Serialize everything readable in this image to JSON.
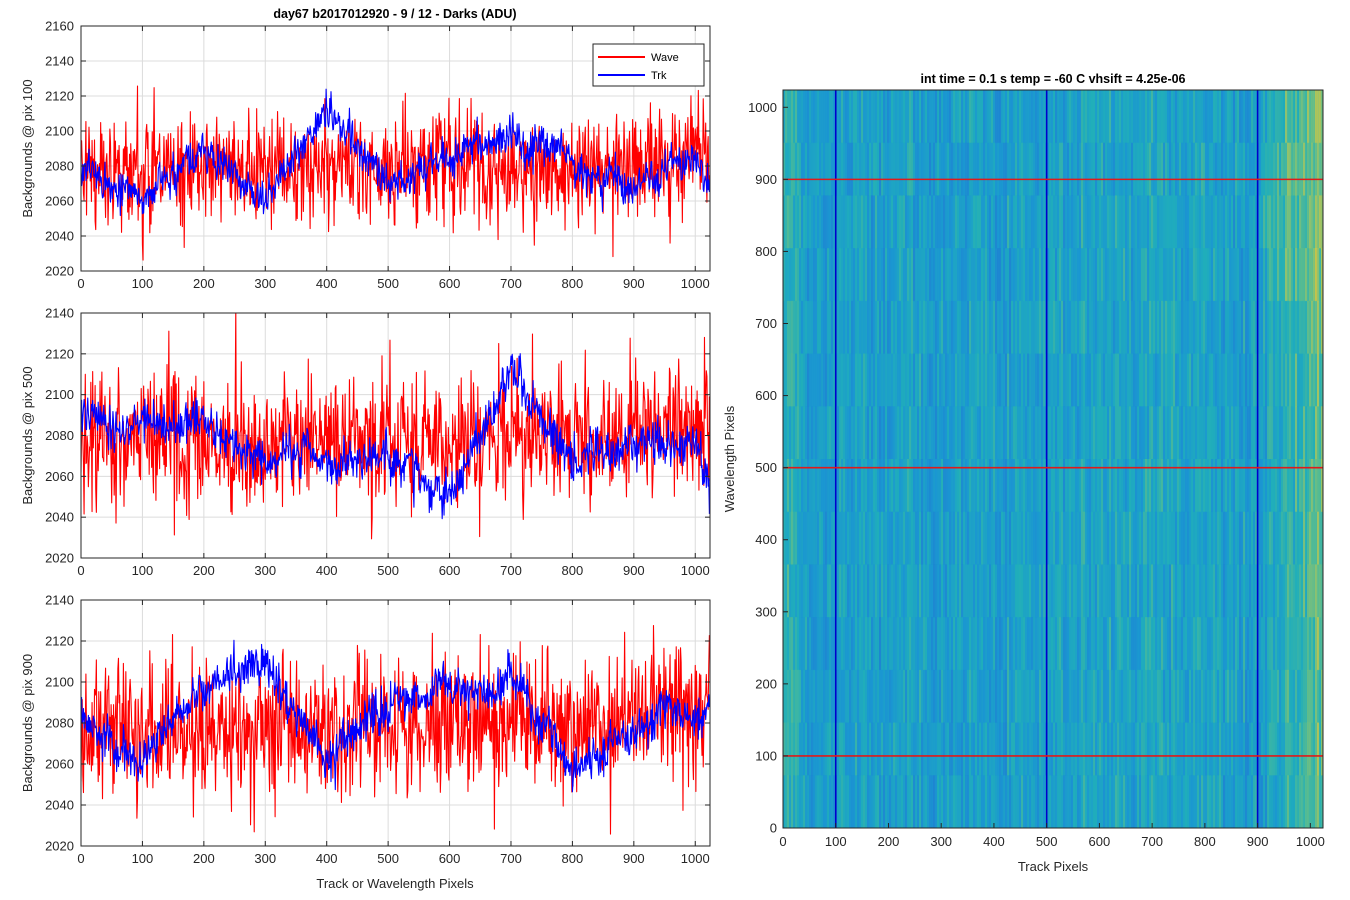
{
  "chart_data": [
    {
      "type": "line",
      "title": "day67 b2017012920 - 9 / 12 - Darks (ADU)",
      "xlabel": "",
      "ylabel": "Backgrounds @ pix 100",
      "xlim": [
        0,
        1024
      ],
      "ylim": [
        2020,
        2160
      ],
      "xticks": [
        0,
        100,
        200,
        300,
        400,
        500,
        600,
        700,
        800,
        900,
        1000
      ],
      "xtick_labels": [
        "0",
        "100",
        "200",
        "300",
        "400",
        "500",
        "600",
        "700",
        "800",
        "900",
        "1000"
      ],
      "yticks": [
        2020,
        2040,
        2060,
        2080,
        2100,
        2120,
        2140,
        2160
      ],
      "ytick_labels": [
        "2020",
        "2040",
        "2060",
        "2080",
        "2100",
        "2120",
        "2140",
        "2160"
      ],
      "grid": true,
      "legend": {
        "placement": "top-right",
        "entries": [
          "Wave",
          "Trk"
        ]
      },
      "series": [
        {
          "name": "Wave",
          "color": "#ff0000",
          "mean": 2079,
          "noise": 16,
          "low_freq": 0,
          "seed": 11,
          "trend": 7,
          "x": [
            0,
            100,
            200,
            300,
            400,
            500,
            600,
            700,
            800,
            900,
            1000,
            1023
          ],
          "y": [
            2079,
            2078,
            2080,
            2078,
            2079,
            2078,
            2080,
            2079,
            2078,
            2080,
            2086,
            2084
          ]
        },
        {
          "name": "Trk",
          "color": "#0000ff",
          "mean": 2077,
          "noise": 5,
          "low_freq": 14,
          "seed": 12,
          "trend": 0,
          "x": [
            0,
            100,
            200,
            300,
            400,
            500,
            600,
            700,
            800,
            900,
            1000,
            1023
          ],
          "y": [
            2078,
            2062,
            2090,
            2060,
            2110,
            2070,
            2080,
            2100,
            2082,
            2064,
            2085,
            2060
          ]
        }
      ]
    },
    {
      "type": "line",
      "title": "",
      "xlabel": "",
      "ylabel": "Backgrounds @ pix 500",
      "xlim": [
        0,
        1024
      ],
      "ylim": [
        2020,
        2140
      ],
      "xticks": [
        0,
        100,
        200,
        300,
        400,
        500,
        600,
        700,
        800,
        900,
        1000
      ],
      "xtick_labels": [
        "0",
        "100",
        "200",
        "300",
        "400",
        "500",
        "600",
        "700",
        "800",
        "900",
        "1000"
      ],
      "yticks": [
        2020,
        2040,
        2060,
        2080,
        2100,
        2120,
        2140
      ],
      "ytick_labels": [
        "2020",
        "2040",
        "2060",
        "2080",
        "2100",
        "2120",
        "2140"
      ],
      "grid": true,
      "series": [
        {
          "name": "Wave",
          "color": "#ff0000",
          "mean": 2077,
          "noise": 16,
          "low_freq": 0,
          "seed": 21,
          "trend": 8,
          "x": [
            0,
            100,
            200,
            300,
            400,
            500,
            600,
            700,
            800,
            900,
            1000,
            1023
          ],
          "y": [
            2077,
            2076,
            2078,
            2076,
            2077,
            2078,
            2077,
            2079,
            2080,
            2082,
            2086,
            2088
          ]
        },
        {
          "name": "Trk",
          "color": "#0000ff",
          "mean": 2076,
          "noise": 5,
          "low_freq": 13,
          "seed": 22,
          "trend": 0,
          "x": [
            0,
            100,
            200,
            300,
            400,
            500,
            600,
            700,
            800,
            900,
            1000,
            1023
          ],
          "y": [
            2094,
            2082,
            2086,
            2066,
            2066,
            2070,
            2052,
            2108,
            2068,
            2074,
            2080,
            2060
          ]
        }
      ]
    },
    {
      "type": "line",
      "title": "",
      "xlabel": "Track or Wavelength Pixels",
      "ylabel": "Backgrounds @ pix 900",
      "xlim": [
        0,
        1024
      ],
      "ylim": [
        2020,
        2140
      ],
      "xticks": [
        0,
        100,
        200,
        300,
        400,
        500,
        600,
        700,
        800,
        900,
        1000
      ],
      "xtick_labels": [
        "0",
        "100",
        "200",
        "300",
        "400",
        "500",
        "600",
        "700",
        "800",
        "900",
        "1000"
      ],
      "yticks": [
        2020,
        2040,
        2060,
        2080,
        2100,
        2120,
        2140
      ],
      "ytick_labels": [
        "2020",
        "2040",
        "2060",
        "2080",
        "2100",
        "2120",
        "2140"
      ],
      "grid": true,
      "series": [
        {
          "name": "Wave",
          "color": "#ff0000",
          "mean": 2078,
          "noise": 17,
          "low_freq": 0,
          "seed": 31,
          "trend": 10,
          "x": [
            0,
            100,
            200,
            300,
            400,
            500,
            600,
            700,
            800,
            900,
            1000,
            1023
          ],
          "y": [
            2078,
            2076,
            2077,
            2076,
            2078,
            2078,
            2080,
            2079,
            2080,
            2084,
            2088,
            2086
          ]
        },
        {
          "name": "Trk",
          "color": "#0000ff",
          "mean": 2080,
          "noise": 5,
          "low_freq": 14,
          "seed": 32,
          "trend": 0,
          "x": [
            0,
            100,
            200,
            300,
            400,
            500,
            600,
            700,
            800,
            900,
            1000,
            1023
          ],
          "y": [
            2084,
            2058,
            2100,
            2110,
            2062,
            2092,
            2096,
            2104,
            2056,
            2078,
            2086,
            2090
          ]
        }
      ]
    },
    {
      "type": "heatmap",
      "title": "int time = 0.1 s   temp = -60 C   vhsift = 4.25e-06",
      "xlabel": "Track Pixels",
      "ylabel": "Wavelength Pixels",
      "xlim": [
        0,
        1024
      ],
      "ylim": [
        0,
        1024
      ],
      "xticks": [
        0,
        100,
        200,
        300,
        400,
        500,
        600,
        700,
        800,
        900,
        1000
      ],
      "xtick_labels": [
        "0",
        "100",
        "200",
        "300",
        "400",
        "500",
        "600",
        "700",
        "800",
        "900",
        "1000"
      ],
      "yticks": [
        0,
        100,
        200,
        300,
        400,
        500,
        600,
        700,
        800,
        900,
        1000
      ],
      "ytick_labels": [
        "0",
        "100",
        "200",
        "300",
        "400",
        "500",
        "600",
        "700",
        "800",
        "900",
        "1000"
      ],
      "colormap": "parula",
      "base_color": "#2d9ec8",
      "vertical_markers": {
        "x": [
          100,
          500,
          900
        ],
        "color": "#0000cc"
      },
      "horizontal_markers": {
        "y": [
          100,
          500,
          900
        ],
        "color": "#e01a1a"
      }
    }
  ]
}
